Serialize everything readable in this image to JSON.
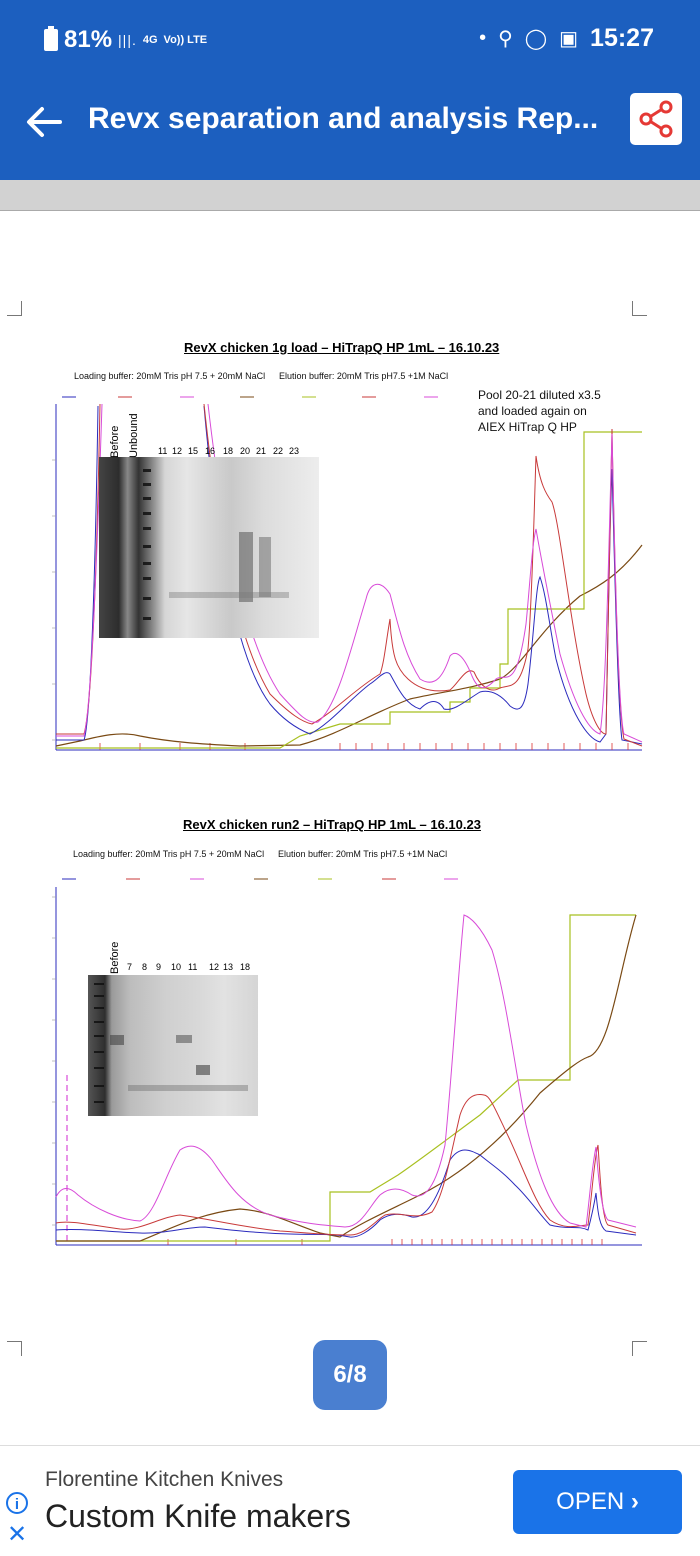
{
  "status": {
    "battery": "81%",
    "network": "4G",
    "volte": "Vo)) LTE",
    "time": "15:27"
  },
  "appbar": {
    "title": "Revx separation and analysis Rep...",
    "back_icon": "arrow-left-icon",
    "share_icon": "share-icon"
  },
  "figure1": {
    "title": "RevX chicken 1g load – HiTrapQ HP 1mL – 16.10.23",
    "loading_buffer": "Loading buffer: 20mM Tris pH 7.5 + 20mM NaCl",
    "elution_buffer": "Elution buffer: 20mM Tris pH7.5 +1M NaCl",
    "note": [
      "Pool 20-21 diluted x3.5",
      "and loaded again on",
      "AIEX HiTrap Q HP"
    ],
    "lanes_vertical": [
      "Before",
      "Unbound"
    ],
    "lanes": [
      "11",
      "12",
      "15",
      "16",
      "18",
      "20",
      "21",
      "22",
      "23"
    ]
  },
  "figure2": {
    "title": "RevX chicken run2 – HiTrapQ HP 1mL – 16.10.23",
    "loading_buffer": "Loading buffer: 20mM Tris pH 7.5 + 20mM NaCl",
    "elution_buffer": "Elution buffer: 20mM Tris pH7.5 +1M NaCl",
    "lanes_vertical": [
      "Before"
    ],
    "lanes": [
      "7",
      "8",
      "9",
      "10",
      "11",
      "12",
      "13",
      "18"
    ]
  },
  "pager": {
    "label": "6/8"
  },
  "ad": {
    "headline": "Florentine Kitchen Knives",
    "body": "Custom Knife makers",
    "cta": "OPEN"
  },
  "colors": {
    "primary": "#1c5fbf",
    "ad_button": "#1a73e8",
    "uv280": "#2b2bbd",
    "uv260": "#c83a3a",
    "uv220": "#d84bd8",
    "cond": "#7a4a14",
    "conc": "#a8c020"
  }
}
